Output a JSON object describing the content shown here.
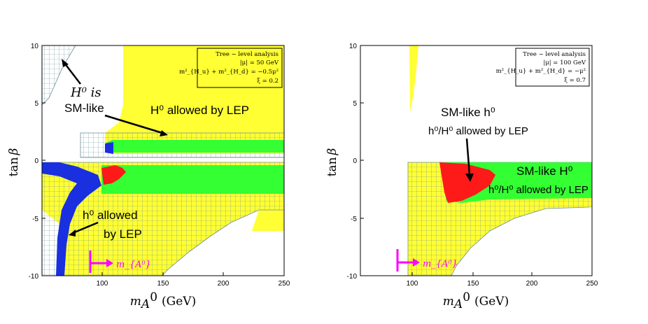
{
  "chart_data": [
    {
      "type": "area",
      "panel": "left",
      "xlabel": "m_{A^0} (GeV)",
      "xlabel_parts": {
        "symbol": "m",
        "sub": "A",
        "sup": "0",
        "unit": "(GeV)"
      },
      "ylabel": "tan β",
      "ylabel_parts": {
        "fn": "tan",
        "sym": "β"
      },
      "xlim": [
        60,
        250
      ],
      "ylim": [
        -10,
        10
      ],
      "xticks": [
        "100",
        "150",
        "200",
        "250"
      ],
      "yticks": [
        "10",
        "5",
        "0",
        "-5",
        "-10"
      ],
      "legend_box": [
        "Tree − level analysis",
        "|μ| = 50 GeV",
        "m²_{H_u} + m²_{H_d} = −0.5μ²",
        "ξ = 0.2"
      ],
      "annotations": {
        "h_is": "H⁰ is",
        "sm_like": "SM-like",
        "H_allowed": "H⁰ allowed by LEP",
        "h_allowed_1": "h⁰ allowed",
        "h_allowed_2": "by LEP",
        "ma_marker": "m_{A⁰}"
      },
      "regions": [
        {
          "name": "LEP-allowed (yellow)",
          "color": "#ffff33"
        },
        {
          "name": "H⁰ allowed band (green)",
          "color": "#33ff33",
          "tanb_range": [
            0.5,
            2
          ]
        },
        {
          "name": "negative tanβ band (green)",
          "color": "#33ff33",
          "tanb_range": [
            -3,
            -0.5
          ]
        },
        {
          "name": "h⁰ allowed strip (blue)",
          "color": "#1a2fe0"
        },
        {
          "name": "both allowed (red)",
          "color": "#ff1a1a"
        },
        {
          "name": "theoretically excluded (hatched)",
          "color": "#5a8a9a"
        }
      ]
    },
    {
      "type": "area",
      "panel": "right",
      "xlabel": "m_{A^0} (GeV)",
      "ylabel": "tan β",
      "xlim": [
        60,
        250
      ],
      "ylim": [
        -10,
        10
      ],
      "xticks": [
        "100",
        "150",
        "200",
        "250"
      ],
      "yticks": [
        "10",
        "5",
        "0",
        "-5",
        "-10"
      ],
      "legend_box": [
        "Tree − level analysis",
        "|μ| = 100 GeV",
        "m²_{H_u} + m²_{H_d} = −μ²",
        "ξ = 0.7"
      ],
      "annotations": {
        "sm_h": "SM-like h⁰",
        "hH_allowed": "h⁰/H⁰ allowed by LEP",
        "sm_H": "SM-like H⁰",
        "hH_allowed_small": "h⁰/H⁰ allowed by LEP",
        "ma_marker": "m_{A⁰}"
      },
      "regions": [
        {
          "name": "LEP-allowed (yellow)",
          "color": "#ffff33"
        },
        {
          "name": "green band",
          "color": "#33ff33",
          "tanb_range": [
            -3.2,
            0
          ]
        },
        {
          "name": "red region",
          "color": "#ff1a1a"
        },
        {
          "name": "theoretically excluded (hatched)",
          "color": "#5a8a9a"
        }
      ]
    }
  ],
  "colors": {
    "yellow": "#ffff33",
    "green": "#33ff33",
    "red": "#ff1a1a",
    "blue": "#1a2fe0",
    "magenta": "#ff00ff",
    "hatch": "#6b8f9a"
  }
}
